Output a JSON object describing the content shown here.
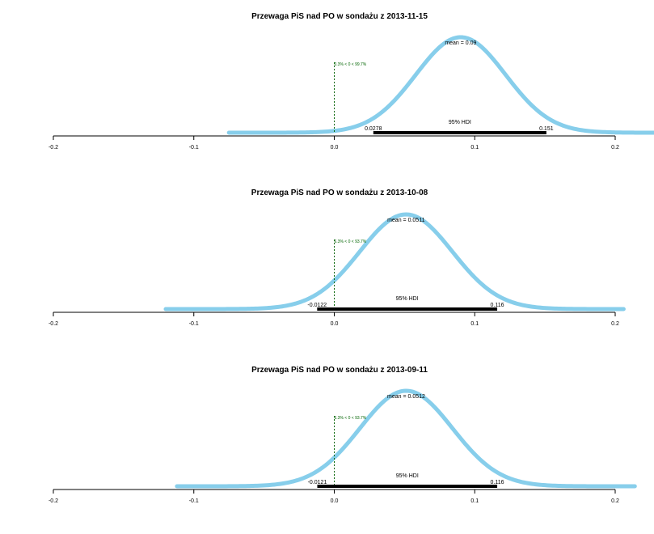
{
  "chart_data": [
    {
      "type": "area",
      "title": "Przewaga PiS nad PO w sondażu z 2013-11-15",
      "xlim": [
        -0.2,
        0.2
      ],
      "xticks": [
        -0.2,
        -0.1,
        0.0,
        0.1,
        0.2
      ],
      "xtick_labels": [
        "-0.2",
        "-0.1",
        "0.0",
        "0.1",
        "0.2"
      ],
      "curve": {
        "mean": 0.09,
        "sd": 0.032,
        "x_min": -0.075,
        "x_max": 0.228
      },
      "mean_label": "mean = 0.09",
      "hdi_label": "95% HDI",
      "hdi": [
        0.0278,
        0.151
      ],
      "hdi_low_label": "0.0278",
      "hdi_high_label": "0.151",
      "comp_value": 0,
      "comp_label": "0.3% < 0 < 99.7%",
      "colors": {
        "curve": "#87CEEB",
        "hdi": "#000000",
        "comp": "#006400"
      }
    },
    {
      "type": "area",
      "title": "Przewaga PiS nad PO w sondażu z 2013-10-08",
      "xlim": [
        -0.2,
        0.2
      ],
      "xticks": [
        -0.2,
        -0.1,
        0.0,
        0.1,
        0.2
      ],
      "xtick_labels": [
        "-0.2",
        "-0.1",
        "0.0",
        "0.1",
        "0.2"
      ],
      "curve": {
        "mean": 0.0511,
        "sd": 0.033,
        "x_min": -0.12,
        "x_max": 0.206
      },
      "mean_label": "mean = 0.0511",
      "hdi_label": "95% HDI",
      "hdi": [
        -0.0122,
        0.116
      ],
      "hdi_low_label": "-0.0122",
      "hdi_high_label": "0.116",
      "comp_value": 0,
      "comp_label": "6.3% < 0 < 93.7%",
      "colors": {
        "curve": "#87CEEB",
        "hdi": "#000000",
        "comp": "#006400"
      }
    },
    {
      "type": "area",
      "title": "Przewaga PiS nad PO w sondażu z 2013-09-11",
      "xlim": [
        -0.2,
        0.2
      ],
      "xticks": [
        -0.2,
        -0.1,
        0.0,
        0.1,
        0.2
      ],
      "xtick_labels": [
        "-0.2",
        "-0.1",
        "0.0",
        "0.1",
        "0.2"
      ],
      "curve": {
        "mean": 0.0512,
        "sd": 0.033,
        "x_min": -0.112,
        "x_max": 0.214
      },
      "mean_label": "mean = 0.0512",
      "hdi_label": "95% HDI",
      "hdi": [
        -0.0121,
        0.116
      ],
      "hdi_low_label": "-0.0121",
      "hdi_high_label": "0.116",
      "comp_value": 0,
      "comp_label": "6.3% < 0 < 93.7%",
      "colors": {
        "curve": "#87CEEB",
        "hdi": "#000000",
        "comp": "#006400"
      }
    }
  ]
}
